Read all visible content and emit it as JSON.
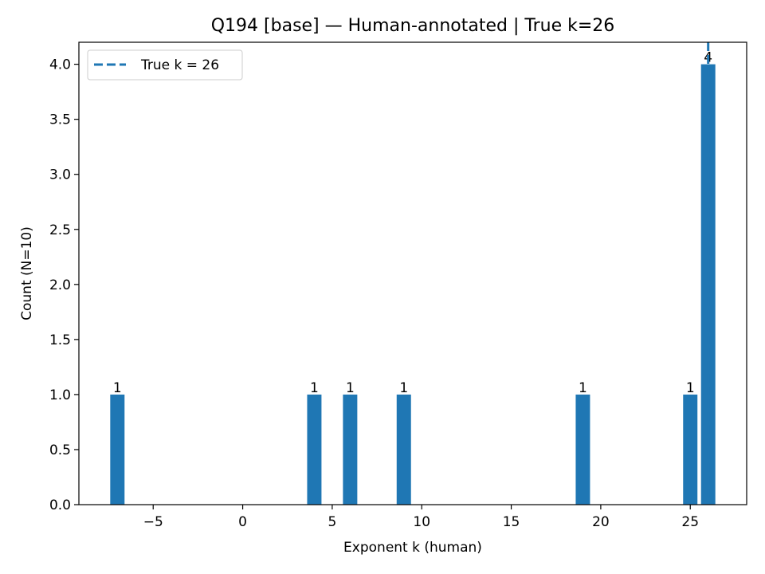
{
  "chart_data": {
    "type": "bar",
    "title": "Q194 [base] — Human-annotated | True k=26",
    "xlabel": "Exponent k (human)",
    "ylabel": "Count (N=10)",
    "x": [
      -7,
      4,
      6,
      9,
      19,
      25,
      26
    ],
    "values": [
      1,
      1,
      1,
      1,
      1,
      1,
      4
    ],
    "data_labels": [
      "1",
      "1",
      "1",
      "1",
      "1",
      "1",
      "4"
    ],
    "bar_width": 0.8,
    "xlim": [
      -9.15,
      28.15
    ],
    "ylim": [
      0,
      4.2
    ],
    "xticks": [
      -5,
      0,
      5,
      10,
      15,
      20,
      25
    ],
    "xtick_labels": [
      "−5",
      "0",
      "5",
      "10",
      "15",
      "20",
      "25"
    ],
    "yticks": [
      0.0,
      0.5,
      1.0,
      1.5,
      2.0,
      2.5,
      3.0,
      3.5,
      4.0
    ],
    "ytick_labels": [
      "0.0",
      "0.5",
      "1.0",
      "1.5",
      "2.0",
      "2.5",
      "3.0",
      "3.5",
      "4.0"
    ],
    "reference_line": {
      "x": 26,
      "style": "dashed",
      "label": "True k = 26"
    },
    "legend": {
      "position": "top-left",
      "entries": [
        "True k = 26"
      ]
    },
    "grid": false,
    "colors": {
      "bar": "#1f77b4",
      "reference_line": "#1f77b4"
    }
  }
}
